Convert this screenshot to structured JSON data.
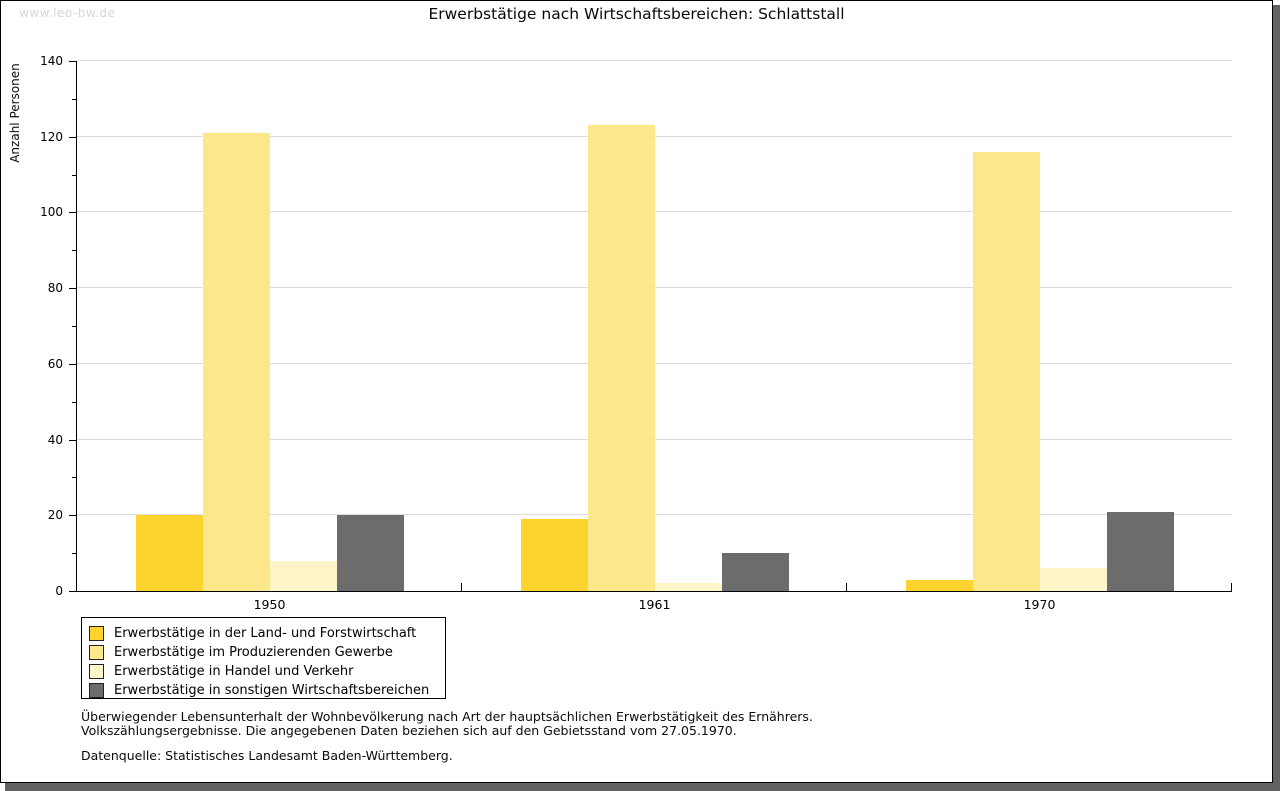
{
  "watermark": "www.leo-bw.de",
  "chart_data": {
    "type": "bar",
    "title": "Erwerbstätige nach Wirtschaftsbereichen: Schlattstall",
    "xlabel": "",
    "ylabel": "Anzahl Personen",
    "ylim": [
      0,
      140
    ],
    "y_major_step": 20,
    "y_minor_step": 10,
    "grid": true,
    "legend_position": "bottom-left",
    "categories": [
      "1950",
      "1961",
      "1970"
    ],
    "series": [
      {
        "name": "Erwerbstätige in der Land- und Forstwirtschaft",
        "color": "#FCD32F",
        "values": [
          20,
          19,
          3
        ]
      },
      {
        "name": "Erwerbstätige im Produzierenden Gewerbe",
        "color": "#FCE88A",
        "values": [
          121,
          123,
          116
        ]
      },
      {
        "name": "Erwerbstätige in Handel und Verkehr",
        "color": "#FDF4C7",
        "values": [
          8,
          2,
          6
        ]
      },
      {
        "name": "Erwerbstätige in sonstigen Wirtschaftsbereichen",
        "color": "#6C6C6C",
        "values": [
          20,
          10,
          21
        ]
      }
    ]
  },
  "footer": {
    "note_line1": "Überwiegender Lebensunterhalt der Wohnbevölkerung nach Art der hauptsächlichen Erwerbstätigkeit des Ernährers.",
    "note_line2": "Volkszählungsergebnisse. Die angegebenen Daten beziehen sich auf den Gebietsstand vom 27.05.1970.",
    "source": "Datenquelle: Statistisches Landesamt Baden-Württemberg."
  },
  "colors": {
    "grid": "#DCDCDC",
    "axis": "#000000",
    "watermark": "#D6D6D6",
    "shadow": "#636363"
  }
}
